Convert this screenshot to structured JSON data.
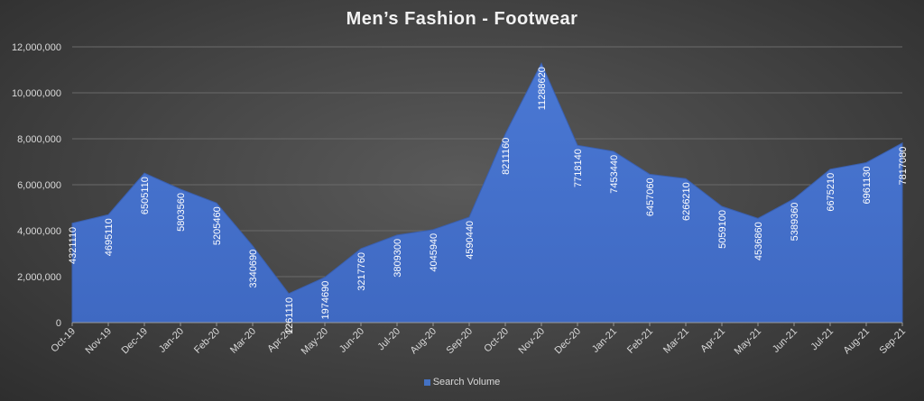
{
  "chart_data": {
    "type": "area",
    "title": "Men’s Fashion - Footwear",
    "xlabel": "",
    "ylabel": "",
    "categories": [
      "Oct-19",
      "Nov-19",
      "Dec-19",
      "Jan-20",
      "Feb-20",
      "Mar-20",
      "Apr-20",
      "May-20",
      "Jun-20",
      "Jul-20",
      "Aug-20",
      "Sep-20",
      "Oct-20",
      "Nov-20",
      "Dec-20",
      "Jan-21",
      "Feb-21",
      "Mar-21",
      "Apr-21",
      "May-21",
      "Jun-21",
      "Jul-21",
      "Aug-21",
      "Sep-21"
    ],
    "series": [
      {
        "name": "Search Volume",
        "values": [
          4321110,
          4695110,
          6505110,
          5803560,
          5205460,
          3340690,
          1261110,
          1974690,
          3217760,
          3809300,
          4045940,
          4590440,
          8211160,
          11288620,
          7718140,
          7453440,
          6457060,
          6266210,
          5059100,
          4536860,
          5389360,
          6675210,
          6961130,
          7817080
        ],
        "color": "#4472C4"
      }
    ],
    "ylim": [
      0,
      12000000
    ],
    "y_ticks": [
      "0",
      "2,000,000",
      "4,000,000",
      "6,000,000",
      "8,000,000",
      "10,000,000",
      "12,000,000"
    ],
    "y_tick_values": [
      0,
      2000000,
      4000000,
      6000000,
      8000000,
      10000000,
      12000000
    ],
    "grid": true,
    "legend_position": "bottom",
    "data_labels": true
  }
}
